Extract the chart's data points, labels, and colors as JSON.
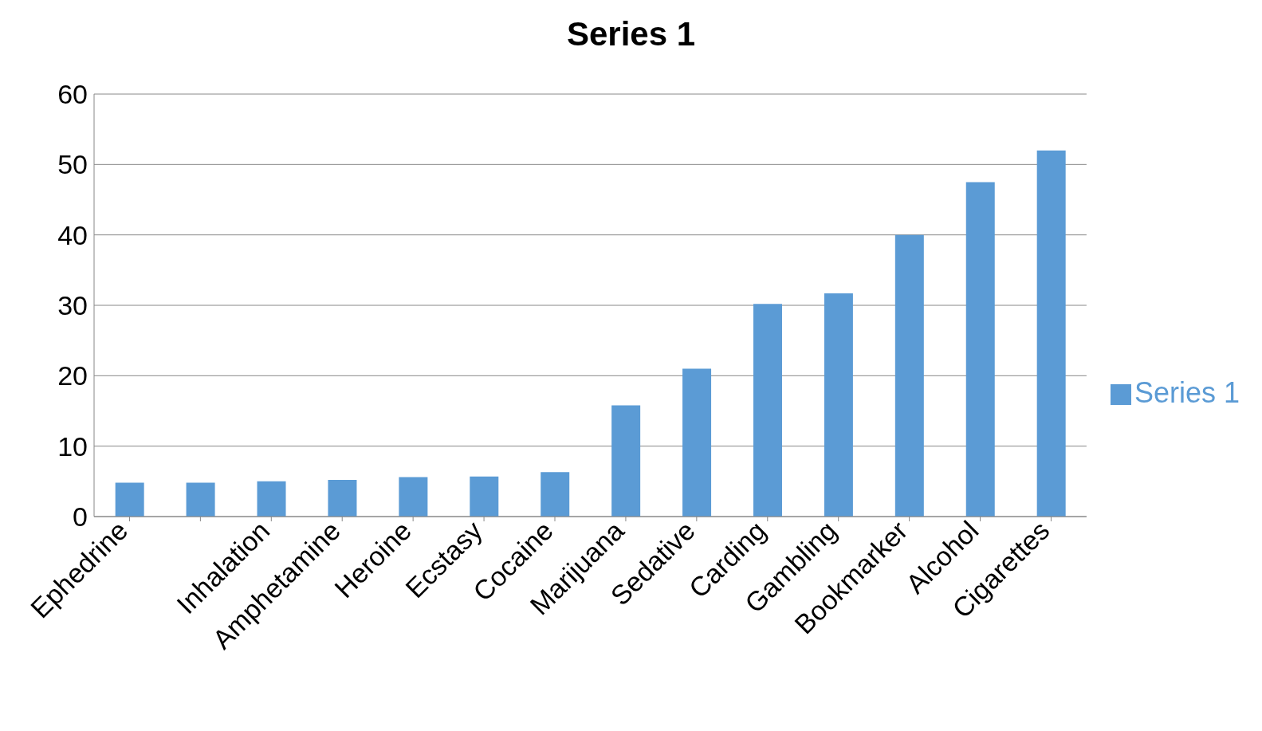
{
  "chart_data": {
    "type": "bar",
    "title": "Series 1",
    "categories": [
      "Ephedrine",
      null,
      "Inhalation",
      "Amphetamine",
      "Heroine",
      "Ecstasy",
      "Cocaine",
      "Marijuana",
      "Sedative",
      "Carding",
      "Gambling",
      "Bookmarker",
      "Alcohol",
      "Cigarettes"
    ],
    "series": [
      {
        "name": "Series 1",
        "color": "#5b9bd5",
        "values": [
          4.8,
          4.8,
          5.0,
          5.2,
          5.6,
          5.7,
          6.3,
          15.8,
          21.0,
          30.2,
          31.7,
          40.0,
          47.5,
          52.0
        ]
      }
    ],
    "ylim": [
      0,
      60
    ],
    "yticks": [
      0,
      10,
      20,
      30,
      40,
      50,
      60
    ],
    "grid": "y",
    "legend": "right"
  }
}
